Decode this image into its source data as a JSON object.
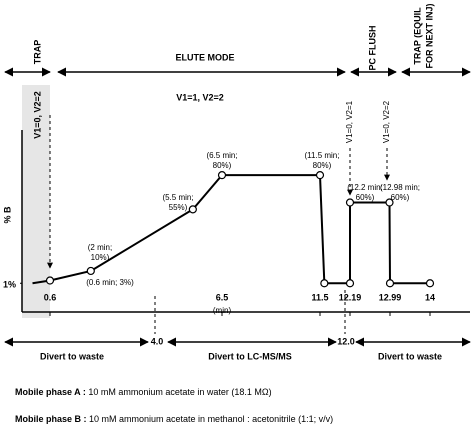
{
  "chart_data": {
    "type": "line",
    "y_label": "% B",
    "x_label": "(min)",
    "x": [
      0,
      0.6,
      2,
      5.5,
      6.5,
      11.5,
      11.6,
      12.19,
      12.19,
      12.98,
      12.99,
      14
    ],
    "series": [
      {
        "name": "% B",
        "color": "#000000",
        "values": [
          1,
          3,
          10,
          55,
          80,
          80,
          1,
          1,
          60,
          60,
          1,
          1
        ]
      }
    ],
    "xticks": [
      0.6,
      6.5,
      11.5,
      12.19,
      12.99,
      14
    ],
    "ylim": [
      -20,
      113
    ],
    "yticks": [
      {
        "value": 1,
        "label": "1%"
      }
    ],
    "point_labels": [
      [
        "(0.6 min; 3%)"
      ],
      [
        "(2 min;",
        "10%)"
      ],
      [
        "(5.5 min;",
        "55%)"
      ],
      [
        "(6.5 min;",
        "80%)"
      ],
      [
        "(11.5 min;",
        "80%)"
      ],
      [
        "(12.2 min;",
        "60%)"
      ],
      [
        "(12.98 min;",
        "60%)"
      ]
    ],
    "phases": [
      "TRAP",
      "ELUTE MODE",
      "PC FLUSH",
      [
        "TRAP  (EQUIL",
        "FOR NEXT INJ)"
      ]
    ],
    "valves": [
      "V1=0, V2=2",
      "V1=1, V2=2",
      "V1=0, V2=1",
      "V1=0, V2=2"
    ],
    "divert_times": [
      "4.0",
      "12.0"
    ],
    "divert_labels": [
      "Divert to waste",
      "Divert to LC-MS/MS",
      "Divert to waste"
    ],
    "notes": [
      {
        "label": "Mobile phase A :",
        "text": " 10 mM ammonium acetate in water (18.1 MΩ)"
      },
      {
        "label": "Mobile phase B :",
        "text": " 10 mM ammonium acetate in methanol : acetonitrile (1:1; v/v)"
      }
    ]
  }
}
